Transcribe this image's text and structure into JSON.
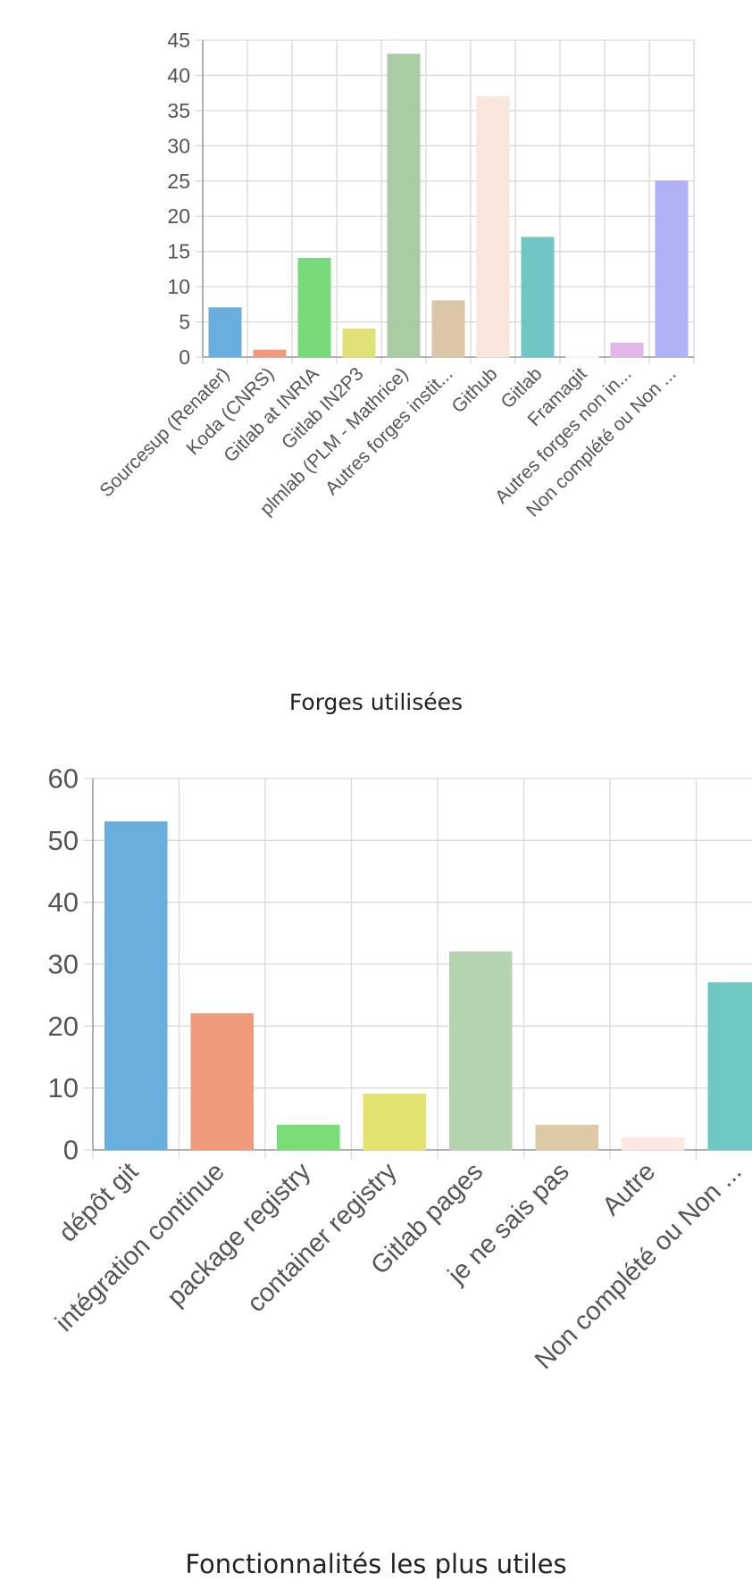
{
  "chart_data": [
    {
      "type": "bar",
      "title": "Forges utilisées",
      "categories": [
        "Sourcesup (Renater)",
        "Koda (CNRS)",
        "Gitlab at INRIA",
        "Gitlab IN2P3",
        "plmlab (PLM - Mathrice)",
        "Autres forges instit...",
        "Github",
        "Gitlab",
        "Framagit",
        "Autres forges non in...",
        "Non complété ou Non ..."
      ],
      "values": [
        7,
        1,
        14,
        4,
        43,
        8,
        37,
        17,
        0,
        2,
        25
      ],
      "colors": [
        "#6aaee0",
        "#ef9a7d",
        "#79da7c",
        "#e0e176",
        "#a9cca5",
        "#dbc6a8",
        "#fbe6dd",
        "#70c6c3",
        "#f5f5f5",
        "#e1b6e8",
        "#b1b1f7"
      ],
      "ylim": [
        0,
        45
      ],
      "yticks": [
        0,
        5,
        10,
        15,
        20,
        25,
        30,
        35,
        40,
        45
      ],
      "xlabel": "",
      "ylabel": "",
      "grid": true
    },
    {
      "type": "bar",
      "title": "Fonctionnalités les plus utiles",
      "categories": [
        "dépôt git",
        "intégration continue",
        "package registry",
        "container registry",
        "Gitlab pages",
        "je ne sais pas",
        "Autre",
        "Non complété ou Non ..."
      ],
      "values": [
        53,
        22,
        4,
        9,
        32,
        4,
        2,
        27
      ],
      "colors": [
        "#6aaedd",
        "#ef9a7d",
        "#79dc75",
        "#e3e371",
        "#b5d3ae",
        "#dcc9a6",
        "#fbe9e1",
        "#70c8c3"
      ],
      "ylim": [
        0,
        60
      ],
      "yticks": [
        0,
        10,
        20,
        30,
        40,
        50,
        60
      ],
      "xlabel": "",
      "ylabel": "",
      "grid": true
    }
  ]
}
